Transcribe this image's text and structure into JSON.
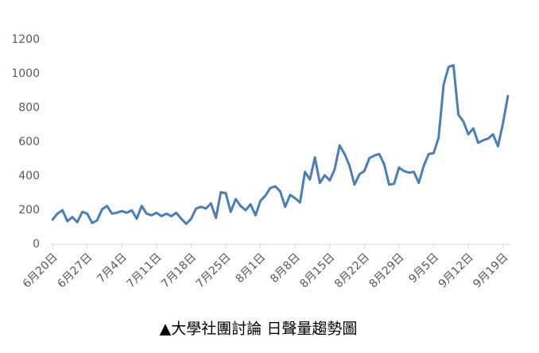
{
  "chart_data": {
    "type": "line",
    "title": "▲大學社團討論 日聲量趨勢圖",
    "categories": [
      "6月20日",
      null,
      null,
      null,
      null,
      null,
      null,
      "6月27日",
      null,
      null,
      null,
      null,
      null,
      null,
      "7月4日",
      null,
      null,
      null,
      null,
      null,
      null,
      "7月11日",
      null,
      null,
      null,
      null,
      null,
      null,
      "7月18日",
      null,
      null,
      null,
      null,
      null,
      null,
      "7月25日",
      null,
      null,
      null,
      null,
      null,
      null,
      "8月1日",
      null,
      null,
      null,
      null,
      null,
      null,
      "8月8日",
      null,
      null,
      null,
      null,
      null,
      null,
      "8月15日",
      null,
      null,
      null,
      null,
      null,
      null,
      "8月22日",
      null,
      null,
      null,
      null,
      null,
      null,
      "8月29日",
      null,
      null,
      null,
      null,
      null,
      null,
      "9月5日",
      null,
      null,
      null,
      null,
      null,
      null,
      "9月12日",
      null,
      null,
      null,
      null,
      null,
      null,
      "9月19日",
      null
    ],
    "values": [
      145,
      180,
      200,
      135,
      160,
      130,
      190,
      180,
      125,
      140,
      205,
      225,
      180,
      185,
      195,
      185,
      200,
      150,
      225,
      180,
      170,
      185,
      165,
      180,
      165,
      185,
      150,
      120,
      150,
      210,
      220,
      210,
      240,
      155,
      305,
      300,
      190,
      265,
      225,
      200,
      235,
      170,
      255,
      285,
      330,
      340,
      310,
      220,
      290,
      270,
      245,
      425,
      380,
      510,
      360,
      405,
      375,
      440,
      580,
      530,
      460,
      350,
      410,
      430,
      505,
      520,
      530,
      470,
      350,
      355,
      450,
      430,
      420,
      425,
      360,
      460,
      530,
      535,
      625,
      935,
      1040,
      1050,
      760,
      720,
      645,
      680,
      595,
      610,
      620,
      645,
      575,
      710,
      870
    ],
    "color": "#4a7ebb",
    "ylim": [
      0,
      1200
    ],
    "yticks": [
      0,
      200,
      400,
      600,
      800,
      1000,
      1200
    ],
    "grid": false
  }
}
